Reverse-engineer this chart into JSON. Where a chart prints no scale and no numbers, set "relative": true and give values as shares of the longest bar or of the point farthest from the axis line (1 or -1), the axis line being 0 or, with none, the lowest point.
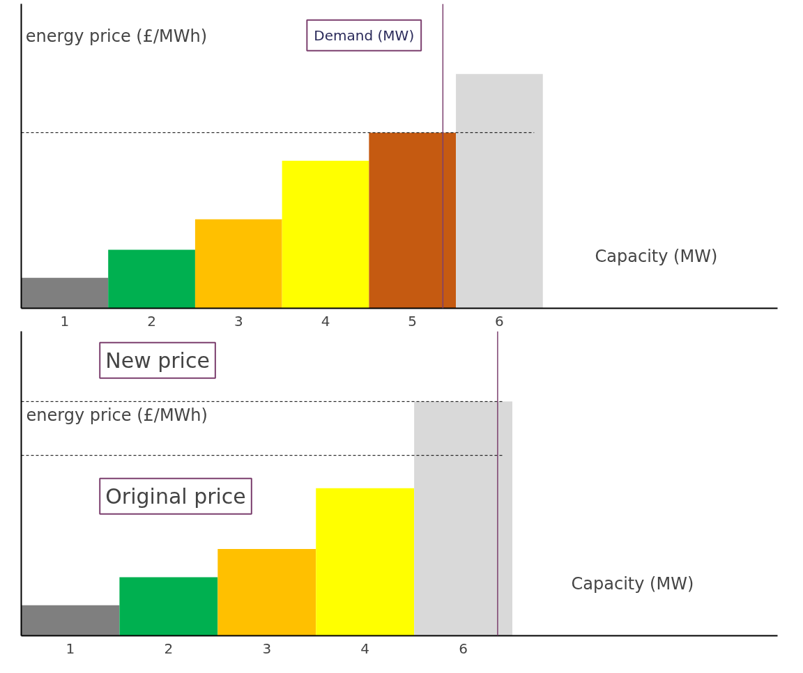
{
  "chart_data": [
    {
      "type": "bar",
      "relative": true,
      "categories": [
        "1",
        "2",
        "3",
        "4",
        "5",
        "6"
      ],
      "values": [
        0.13,
        0.25,
        0.38,
        0.63,
        0.75,
        1.0
      ],
      "colors": [
        "#7f7f7f",
        "#00b050",
        "#ffc000",
        "#ffff00",
        "#c55a11",
        "#d9d9d9"
      ],
      "ylabel": "energy price (£/MWh)",
      "xlabel": "Capacity (MW)",
      "ref_lines": [
        {
          "axis": "y",
          "value": 0.75,
          "line_style": "dashed",
          "color": "#000000"
        },
        {
          "axis": "x",
          "value": "5",
          "label": "Demand (MW)",
          "color": "#7b3f6e",
          "line_style": "solid"
        }
      ]
    },
    {
      "type": "bar",
      "relative": true,
      "categories": [
        "1",
        "2",
        "3",
        "4",
        "6"
      ],
      "values": [
        0.13,
        0.25,
        0.37,
        0.63,
        1.0
      ],
      "colors": [
        "#7f7f7f",
        "#00b050",
        "#ffc000",
        "#ffff00",
        "#d9d9d9"
      ],
      "ylabel": "energy price (£/MWh)",
      "xlabel": "Capacity (MW)",
      "ref_lines": [
        {
          "axis": "y",
          "value": 1.0,
          "label": "New price",
          "line_style": "dashed",
          "color": "#000000"
        },
        {
          "axis": "y",
          "value": 0.77,
          "label": "Original price",
          "line_style": "dashed",
          "color": "#000000"
        },
        {
          "axis": "x",
          "value": "6",
          "color": "#7b3f6e",
          "line_style": "solid"
        }
      ]
    }
  ]
}
